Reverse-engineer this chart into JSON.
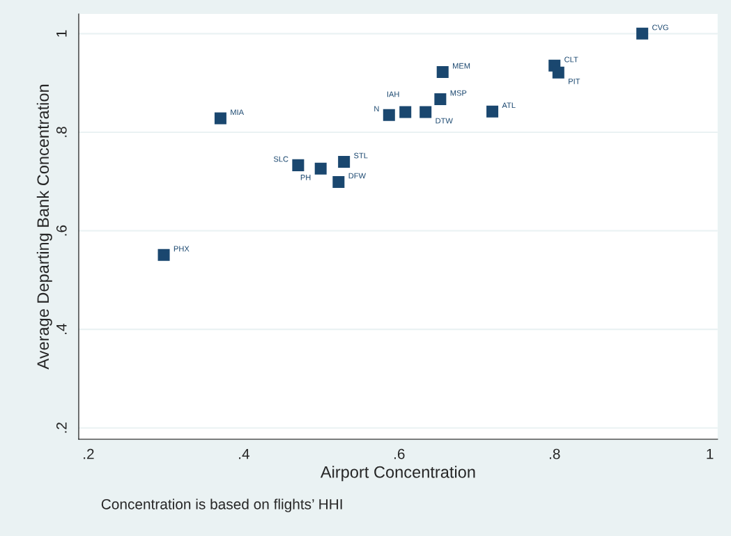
{
  "chart_data": {
    "type": "scatter",
    "xlabel": "Airport Concentration",
    "ylabel": "Average Departing Bank Concentration",
    "annotations": [
      {
        "text": "CVG",
        "x": 0.913,
        "y": 1.0
      },
      {
        "text": "CLT",
        "x": 0.8,
        "y": 0.935
      },
      {
        "text": "PIT",
        "x": 0.805,
        "y": 0.921
      },
      {
        "text": "MEM",
        "x": 0.656,
        "y": 0.922
      },
      {
        "text": "MSP",
        "x": 0.653,
        "y": 0.867
      },
      {
        "text": "ATL",
        "x": 0.72,
        "y": 0.842
      },
      {
        "text": "DTW",
        "x": 0.634,
        "y": 0.841
      },
      {
        "text": "IAH",
        "x": 0.608,
        "y": 0.841
      },
      {
        "text": "N",
        "x": 0.587,
        "y": 0.835
      },
      {
        "text": "MIA",
        "x": 0.37,
        "y": 0.828
      },
      {
        "text": "STL",
        "x": 0.529,
        "y": 0.74
      },
      {
        "text": "SLC",
        "x": 0.47,
        "y": 0.733
      },
      {
        "text": "PH",
        "x": 0.499,
        "y": 0.726
      },
      {
        "text": "DFW",
        "x": 0.522,
        "y": 0.699
      },
      {
        "text": "PHX",
        "x": 0.297,
        "y": 0.551
      },
      "Concentration is based on flights’ HHI"
    ],
    "x": [
      0.913,
      0.8,
      0.805,
      0.656,
      0.653,
      0.72,
      0.634,
      0.608,
      0.587,
      0.37,
      0.529,
      0.47,
      0.499,
      0.522,
      0.297
    ],
    "values": [
      1.0,
      0.935,
      0.921,
      0.922,
      0.867,
      0.842,
      0.841,
      0.841,
      0.835,
      0.828,
      0.74,
      0.733,
      0.726,
      0.699,
      0.551
    ],
    "color": "#1a476f",
    "marker": "square",
    "xlim": [
      0.1875,
      1.01
    ],
    "ylim": [
      0.177,
      1.04
    ],
    "xticks": [
      {
        "value": 0.2,
        "label": ".2"
      },
      {
        "value": 0.4,
        "label": ".4"
      },
      {
        "value": 0.6,
        "label": ".6"
      },
      {
        "value": 0.8,
        "label": ".8"
      },
      1
    ],
    "yticks": [
      {
        "value": 0.2,
        "label": ".2"
      },
      {
        "value": 0.4,
        "label": ".4"
      },
      {
        "value": 0.6,
        "label": ".6"
      },
      {
        "value": 0.8,
        "label": ".8"
      },
      1
    ],
    "grid": "y"
  }
}
